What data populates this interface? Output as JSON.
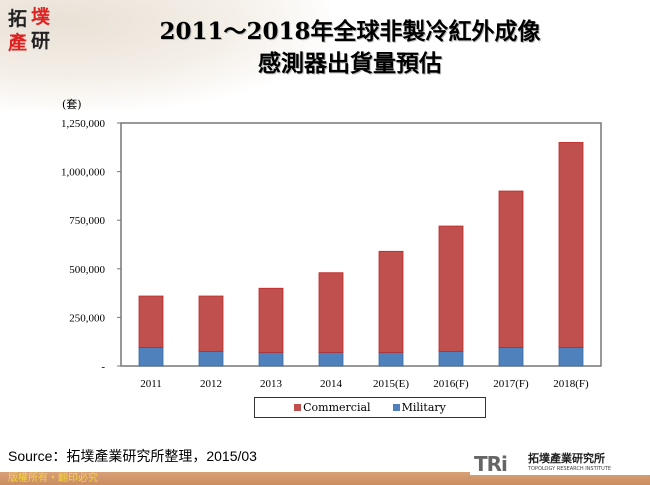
{
  "logo": {
    "chars": [
      "拓",
      "墣",
      "產",
      "研"
    ]
  },
  "title_line1": "2011～2018年全球非製冷紅外成像",
  "title_line2": "感測器出貨量預估",
  "chart_data": {
    "type": "bar",
    "stacked": true,
    "title": "2011～2018年全球非製冷紅外成像感測器出貨量預估",
    "ylabel": "(套)",
    "xlabel": "",
    "categories": [
      "2011",
      "2012",
      "2013",
      "2014",
      "2015(E)",
      "2016(F)",
      "2017(F)",
      "2018(F)"
    ],
    "series": [
      {
        "name": "Military",
        "color": "#4f81bd",
        "values": [
          95000,
          75000,
          70000,
          70000,
          70000,
          75000,
          95000,
          95000
        ]
      },
      {
        "name": "Commercial",
        "color": "#c0504d",
        "values": [
          265000,
          285000,
          330000,
          410000,
          520000,
          645000,
          805000,
          1055000
        ]
      }
    ],
    "ylim": [
      0,
      1250000
    ],
    "yticks": [
      0,
      250000,
      500000,
      750000,
      1000000,
      1250000
    ],
    "ytick_labels": [
      "-",
      "250,000",
      "500,000",
      "750,000",
      "1,000,000",
      "1,250,000"
    ],
    "grid": false,
    "legend_placement": "bottom"
  },
  "legend": {
    "commercial": "Commercial",
    "military": "Military"
  },
  "source": "Source：拓墣產業研究所整理，2015/03",
  "copyright": "版權所有・翻印必究",
  "brand": {
    "mark": "TRi",
    "cn": "拓墣產業研究所",
    "en": "TOPOLOGY RESEARCH INSTITUTE"
  }
}
